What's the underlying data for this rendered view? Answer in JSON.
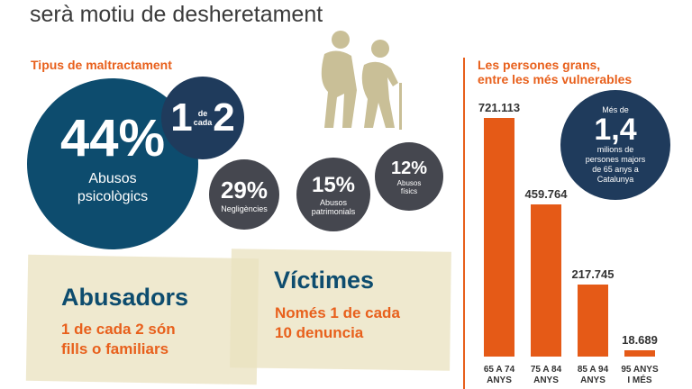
{
  "header": {
    "title_line2": "serà motiu de desheretament"
  },
  "types": {
    "heading": "Tipus de maltractament",
    "main": {
      "value": "44%",
      "label_1": "Abusos",
      "label_2": "psicològics",
      "color": "#0d4c6e"
    },
    "ratio": {
      "one": "1",
      "de": "de",
      "cada": "cada",
      "two": "2",
      "color": "#1f3b5c"
    },
    "items": [
      {
        "value": "29%",
        "label_1": "Negligències",
        "label_2": ""
      },
      {
        "value": "15%",
        "label_1": "Abusos",
        "label_2": "patrimonials"
      },
      {
        "value": "12%",
        "label_1": "Abusos",
        "label_2": "físics"
      }
    ],
    "item_color": "#45474f"
  },
  "cards": {
    "abusers": {
      "title": "Abusadors",
      "line1": "1 de cada 2 són",
      "line2": "fills o familiars"
    },
    "victims": {
      "title": "Víctimes",
      "line1": "Només 1 de cada",
      "line2": "10 denuncia"
    }
  },
  "vulnerable": {
    "heading_1": "Les persones grans,",
    "heading_2": "entre les més vulnerables",
    "callout": {
      "pre": "Més de",
      "value": "1,4",
      "l1": "milions de",
      "l2": "persones majors",
      "l3": "de 65 anys a",
      "l4": "Catalunya"
    }
  },
  "chart_data": {
    "type": "bar",
    "categories": [
      [
        "65 A 74",
        "ANYS"
      ],
      [
        "75 A 84",
        "ANYS"
      ],
      [
        "85 A 94",
        "ANYS"
      ],
      [
        "95 ANYS",
        "I MÉS"
      ]
    ],
    "values": [
      721113,
      459764,
      217745,
      18689
    ],
    "labels": [
      "721.113",
      "459.764",
      "217.745",
      "18.689"
    ],
    "color": "#e55a17"
  }
}
